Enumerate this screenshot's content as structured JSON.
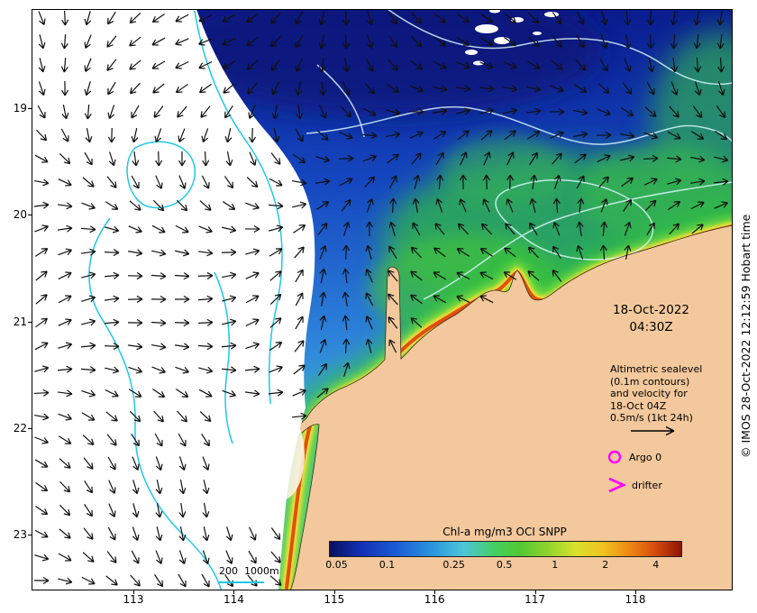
{
  "header": {
    "date": "18-Oct-2022",
    "time": "04:30Z"
  },
  "annotation": {
    "lines": [
      "Altimetric sealevel",
      "(0.1m contours)",
      "and velocity for",
      "18-Oct 04Z",
      "0.5m/s (1kt 24h)"
    ]
  },
  "legend": {
    "argo": "Argo 0",
    "drifter": "drifter"
  },
  "depth_legend": {
    "label": "200  1000m"
  },
  "colorbar": {
    "title": "Chl-a mg/m3 OCI SNPP",
    "ticks": [
      0.05,
      0.1,
      0.25,
      0.5,
      1,
      2,
      4
    ],
    "min": 0.045,
    "max": 5.6
  },
  "axes": {
    "lat_ticks": [
      19,
      20,
      21,
      22,
      23
    ],
    "lon_ticks": [
      113,
      114,
      115,
      116,
      117,
      118
    ]
  },
  "credit": "© IMOS 28-Oct-2022 12:12:59 Hobart time",
  "colors": {
    "marker_magenta": "#ff00ff",
    "land": "#f2c89c",
    "contour_cyan": "#1ec8e6",
    "ssh_contour": "#d8f4f8"
  }
}
